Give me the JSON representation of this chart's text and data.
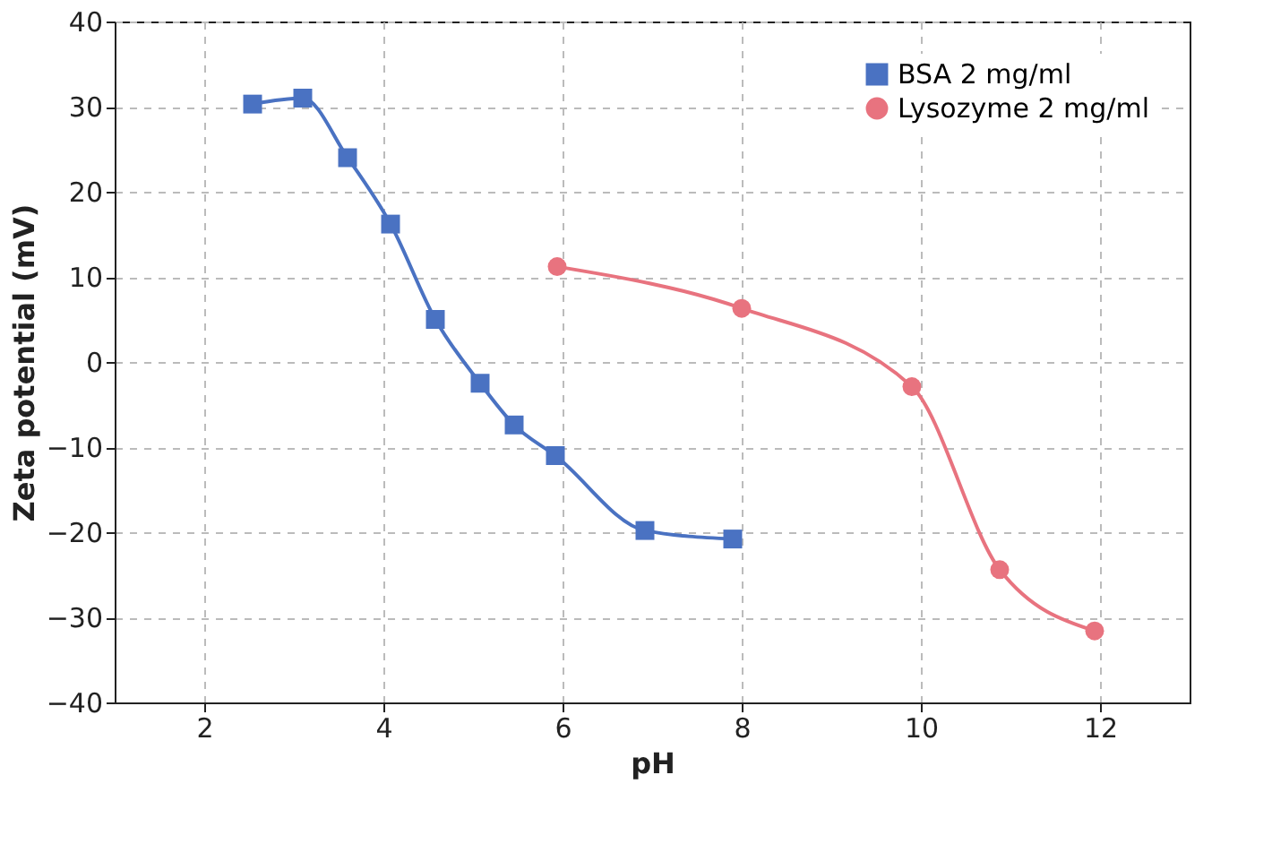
{
  "chart_data": {
    "type": "line",
    "xlabel": "pH",
    "ylabel": "Zeta potential (mV)",
    "xlim": [
      1,
      13
    ],
    "xticks": [
      2,
      4,
      6,
      8,
      10,
      12
    ],
    "ylim": [
      -40,
      40
    ],
    "yticks": [
      -40,
      -30,
      -20,
      -10,
      0,
      10,
      20,
      30,
      40
    ],
    "grid": true,
    "legend": "top right",
    "line_style": "solid",
    "series": [
      {
        "name": "BSA 2 mg/ml",
        "color": "#4a72c2",
        "marker": "square",
        "x": [
          2.54,
          3.1,
          3.6,
          4.08,
          4.58,
          5.08,
          5.46,
          5.92,
          6.92,
          7.9
        ],
        "values": [
          30.3,
          31,
          24,
          16.2,
          5,
          -2.5,
          -7.4,
          -11,
          -19.8,
          -20.8
        ]
      },
      {
        "name": "Lysozyme 2 mg/ml",
        "color": "#e8737f",
        "marker": "circle",
        "x": [
          5.94,
          8,
          9.9,
          10.88,
          11.94
        ],
        "values": [
          11.2,
          6.3,
          -2.9,
          -24.4,
          -31.6
        ]
      }
    ]
  }
}
